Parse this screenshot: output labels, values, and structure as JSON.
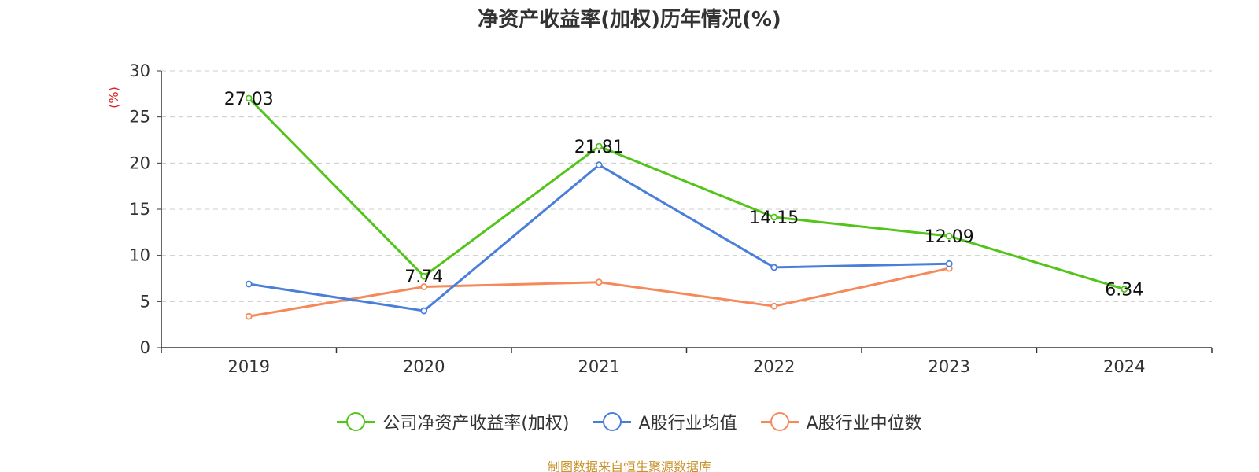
{
  "chart_data": {
    "type": "line",
    "title": "净资产收益率(加权)历年情况(%)",
    "ylabel": "(%)",
    "xlabel": "",
    "categories": [
      "2019",
      "2020",
      "2021",
      "2022",
      "2023",
      "2024"
    ],
    "ylim": [
      0,
      30
    ],
    "yticks": [
      0,
      5,
      10,
      15,
      20,
      25,
      30
    ],
    "grid": true,
    "legend_position": "bottom",
    "series": [
      {
        "name": "公司净资产收益率(加权)",
        "color": "#52c41a",
        "values": [
          27.03,
          7.74,
          21.81,
          14.15,
          12.09,
          6.34
        ],
        "labels": [
          "27.03",
          "7.74",
          "21.81",
          "14.15",
          "12.09",
          "6.34"
        ]
      },
      {
        "name": "A股行业均值",
        "color": "#4a7fd9",
        "values": [
          6.9,
          4.0,
          19.8,
          8.7,
          9.1,
          null
        ]
      },
      {
        "name": "A股行业中位数",
        "color": "#f5895a",
        "values": [
          3.4,
          6.6,
          7.1,
          4.5,
          8.6,
          null
        ]
      }
    ]
  },
  "footer": {
    "source": "制图数据来自恒生聚源数据库"
  },
  "colors": {
    "axis": "#333333",
    "grid": "#cccccc",
    "ylabel": "#e02020",
    "source": "#c8922c"
  }
}
